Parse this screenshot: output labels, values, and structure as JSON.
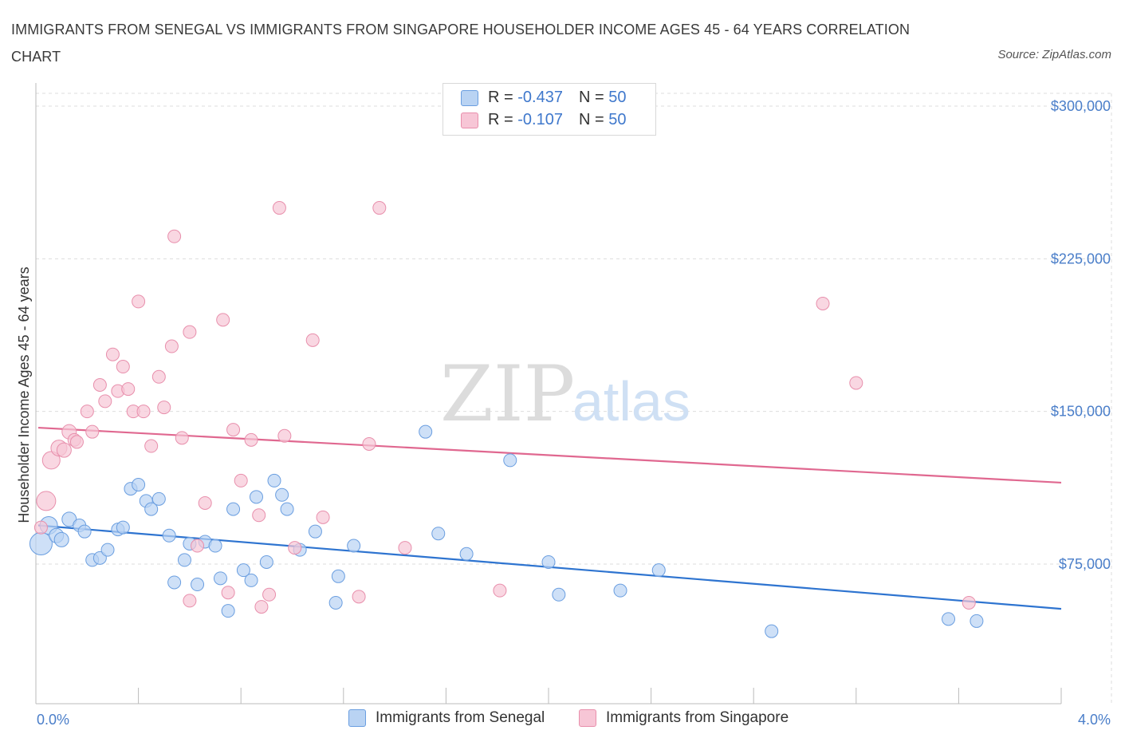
{
  "title": "IMMIGRANTS FROM SENEGAL VS IMMIGRANTS FROM SINGAPORE HOUSEHOLDER INCOME AGES 45 - 64 YEARS CORRELATION CHART",
  "source": "Source: ZipAtlas.com",
  "watermark": {
    "zip": "ZIP",
    "atlas": "atlas"
  },
  "legend": {
    "senegal": {
      "r_label": "R = ",
      "r_value": "-0.437",
      "n_label": "N = ",
      "n_value": "50"
    },
    "singapore": {
      "r_label": "R = ",
      "r_value": "-0.107",
      "n_label": "N = ",
      "n_value": "50"
    }
  },
  "bottom_legend": {
    "senegal": "Immigrants from Senegal",
    "singapore": "Immigrants from Singapore"
  },
  "colors": {
    "senegal_fill": "#b9d3f3",
    "senegal_stroke": "#6a9ee0",
    "senegal_line": "#2e74d0",
    "singapore_fill": "#f7c6d6",
    "singapore_stroke": "#e88fac",
    "singapore_line": "#e06890",
    "tick_text": "#4a7ec9",
    "grid": "#dddddd"
  },
  "chart_data": {
    "type": "scatter",
    "xlabel": "",
    "ylabel": "Householder Income Ages 45 - 64 years",
    "xlim": [
      0,
      4
    ],
    "ylim": [
      0,
      300000
    ],
    "x_tick_labels": [
      {
        "value": 0,
        "label": "0.0%"
      },
      {
        "value": 4,
        "label": "4.0%"
      }
    ],
    "y_tick_labels": [
      {
        "value": 75000,
        "label": "$75,000"
      },
      {
        "value": 150000,
        "label": "$150,000"
      },
      {
        "value": 225000,
        "label": "$225,000"
      },
      {
        "value": 300000,
        "label": "$300,000"
      }
    ],
    "grid": true,
    "series": [
      {
        "name": "Immigrants from Senegal",
        "trend": {
          "x": [
            0,
            4
          ],
          "y": [
            94000,
            53000
          ]
        },
        "points": [
          [
            0.02,
            85000,
            14
          ],
          [
            0.05,
            94000,
            11
          ],
          [
            0.08,
            89000,
            9
          ],
          [
            0.1,
            87000,
            9
          ],
          [
            0.13,
            97000,
            9
          ],
          [
            0.17,
            94000,
            8
          ],
          [
            0.19,
            91000,
            8
          ],
          [
            0.22,
            77000,
            8
          ],
          [
            0.25,
            78000,
            8
          ],
          [
            0.28,
            82000,
            8
          ],
          [
            0.32,
            92000,
            8
          ],
          [
            0.34,
            93000,
            8
          ],
          [
            0.37,
            112000,
            8
          ],
          [
            0.4,
            114000,
            8
          ],
          [
            0.43,
            106000,
            8
          ],
          [
            0.45,
            102000,
            8
          ],
          [
            0.48,
            107000,
            8
          ],
          [
            0.52,
            89000,
            8
          ],
          [
            0.54,
            66000,
            8
          ],
          [
            0.58,
            77000,
            8
          ],
          [
            0.6,
            85000,
            8
          ],
          [
            0.63,
            65000,
            8
          ],
          [
            0.66,
            86000,
            8
          ],
          [
            0.7,
            84000,
            8
          ],
          [
            0.72,
            68000,
            8
          ],
          [
            0.75,
            52000,
            8
          ],
          [
            0.77,
            102000,
            8
          ],
          [
            0.81,
            72000,
            8
          ],
          [
            0.84,
            67000,
            8
          ],
          [
            0.86,
            108000,
            8
          ],
          [
            0.9,
            76000,
            8
          ],
          [
            0.93,
            116000,
            8
          ],
          [
            0.96,
            109000,
            8
          ],
          [
            0.98,
            102000,
            8
          ],
          [
            1.03,
            82000,
            8
          ],
          [
            1.09,
            91000,
            8
          ],
          [
            1.17,
            56000,
            8
          ],
          [
            1.18,
            69000,
            8
          ],
          [
            1.24,
            84000,
            8
          ],
          [
            1.52,
            140000,
            8
          ],
          [
            1.57,
            90000,
            8
          ],
          [
            1.68,
            80000,
            8
          ],
          [
            1.85,
            126000,
            8
          ],
          [
            2.0,
            76000,
            8
          ],
          [
            2.04,
            60000,
            8
          ],
          [
            2.28,
            62000,
            8
          ],
          [
            2.43,
            72000,
            8
          ],
          [
            2.87,
            42000,
            8
          ],
          [
            3.56,
            48000,
            8
          ],
          [
            3.67,
            47000,
            8
          ]
        ]
      },
      {
        "name": "Immigrants from Singapore",
        "trend": {
          "x": [
            0,
            4
          ],
          "y": [
            142000,
            115000
          ]
        },
        "points": [
          [
            0.04,
            106000,
            12
          ],
          [
            0.06,
            126000,
            11
          ],
          [
            0.09,
            132000,
            10
          ],
          [
            0.11,
            131000,
            9
          ],
          [
            0.13,
            140000,
            9
          ],
          [
            0.15,
            136000,
            8
          ],
          [
            0.2,
            150000,
            8
          ],
          [
            0.22,
            140000,
            8
          ],
          [
            0.25,
            163000,
            8
          ],
          [
            0.27,
            155000,
            8
          ],
          [
            0.3,
            178000,
            8
          ],
          [
            0.32,
            160000,
            8
          ],
          [
            0.34,
            172000,
            8
          ],
          [
            0.36,
            161000,
            8
          ],
          [
            0.38,
            150000,
            8
          ],
          [
            0.4,
            204000,
            8
          ],
          [
            0.42,
            150000,
            8
          ],
          [
            0.45,
            133000,
            8
          ],
          [
            0.48,
            167000,
            8
          ],
          [
            0.5,
            152000,
            8
          ],
          [
            0.53,
            182000,
            8
          ],
          [
            0.54,
            236000,
            8
          ],
          [
            0.57,
            137000,
            8
          ],
          [
            0.6,
            189000,
            8
          ],
          [
            0.6,
            57000,
            8
          ],
          [
            0.63,
            84000,
            8
          ],
          [
            0.66,
            105000,
            8
          ],
          [
            0.73,
            195000,
            8
          ],
          [
            0.75,
            61000,
            8
          ],
          [
            0.77,
            141000,
            8
          ],
          [
            0.8,
            116000,
            8
          ],
          [
            0.84,
            136000,
            8
          ],
          [
            0.87,
            99000,
            8
          ],
          [
            0.88,
            54000,
            8
          ],
          [
            0.91,
            60000,
            8
          ],
          [
            0.95,
            250000,
            8
          ],
          [
            0.97,
            138000,
            8
          ],
          [
            1.01,
            83000,
            8
          ],
          [
            1.08,
            185000,
            8
          ],
          [
            1.12,
            98000,
            8
          ],
          [
            1.26,
            59000,
            8
          ],
          [
            1.3,
            134000,
            8
          ],
          [
            1.34,
            250000,
            8
          ],
          [
            1.44,
            83000,
            8
          ],
          [
            1.81,
            62000,
            8
          ],
          [
            3.07,
            203000,
            8
          ],
          [
            3.2,
            164000,
            8
          ],
          [
            3.64,
            56000,
            8
          ],
          [
            0.02,
            93000,
            8
          ],
          [
            0.16,
            135000,
            8
          ]
        ]
      }
    ]
  }
}
